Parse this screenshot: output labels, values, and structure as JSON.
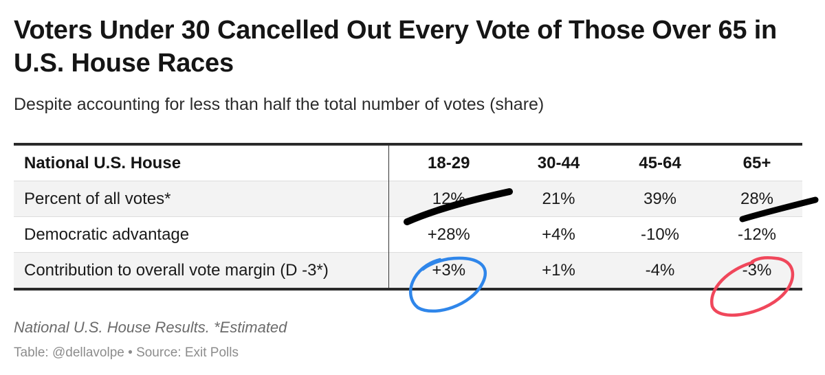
{
  "title": "Voters Under 30 Cancelled Out Every Vote of Those Over 65 in U.S. House Races",
  "subtitle": "Despite accounting for less than half the total number of votes (share)",
  "chart_data": {
    "type": "table",
    "header_label": "National U.S. House",
    "columns": [
      "18-29",
      "30-44",
      "45-64",
      "65+"
    ],
    "rows": [
      {
        "label": "Percent of all votes*",
        "values": [
          "12%",
          "21%",
          "39%",
          "28%"
        ]
      },
      {
        "label": "Democratic advantage",
        "values": [
          "+28%",
          "+4%",
          "-10%",
          "-12%"
        ]
      },
      {
        "label": "Contribution to overall vote margin (D -3*)",
        "values": [
          "+3%",
          "+1%",
          "-4%",
          "-3%"
        ]
      }
    ],
    "annotations": [
      {
        "type": "marker-strike",
        "target": "12%",
        "color": "#000000"
      },
      {
        "type": "marker-strike",
        "target": "28%",
        "color": "#000000"
      },
      {
        "type": "circle",
        "target": "+3%",
        "color": "#2f86ea"
      },
      {
        "type": "circle",
        "target": "-3%",
        "color": "#f0475b"
      }
    ]
  },
  "footnote": "National U.S. House Results. *Estimated",
  "credit_table": "Table: @dellavolpe",
  "credit_separator": "•",
  "credit_source": "Source: Exit Polls"
}
